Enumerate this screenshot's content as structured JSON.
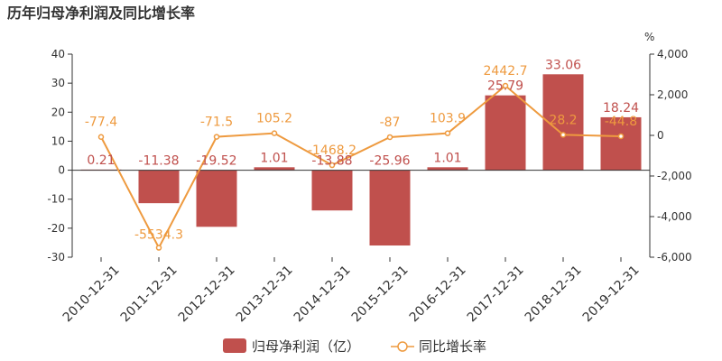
{
  "chart_data": {
    "type": "bar",
    "title": "历年归母净利润及同比增长率",
    "categories": [
      "2010-12-31",
      "2011-12-31",
      "2012-12-31",
      "2013-12-31",
      "2014-12-31",
      "2015-12-31",
      "2016-12-31",
      "2017-12-31",
      "2018-12-31",
      "2019-12-31"
    ],
    "series": [
      {
        "name": "归母净利润（亿）",
        "type": "bar",
        "axis": "left",
        "color": "#c0504d",
        "values": [
          0.21,
          -11.38,
          -19.52,
          1.01,
          -13.88,
          -25.96,
          1.01,
          25.79,
          33.06,
          18.24
        ],
        "labels": [
          "0.21",
          "-11.38",
          "-19.52",
          "1.01",
          "-13.88",
          "-25.96",
          "1.01",
          "25.79",
          "33.06",
          "18.24"
        ]
      },
      {
        "name": "同比增长率",
        "type": "line",
        "axis": "right",
        "color": "#ee9a3f",
        "values": [
          -77.4,
          -5534.3,
          -71.5,
          105.2,
          -1468.2,
          -87,
          103.9,
          2442.7,
          28.2,
          -44.8
        ],
        "labels": [
          "-77.4",
          "-5534.3",
          "-71.5",
          "105.2",
          "-1468.2",
          "-87",
          "103.9",
          "2442.7",
          "28.2",
          "-44.8"
        ]
      }
    ],
    "y_left": {
      "min": -30,
      "max": 40,
      "ticks": [
        "-30",
        "-20",
        "-10",
        "0",
        "10",
        "20",
        "30",
        "40"
      ]
    },
    "y_right": {
      "min": -6000,
      "max": 4000,
      "unit": "%",
      "ticks": [
        "-6,000",
        "-4,000",
        "-2,000",
        "0",
        "2,000",
        "4,000"
      ]
    },
    "legend_position": "bottom-center",
    "grid": false
  }
}
